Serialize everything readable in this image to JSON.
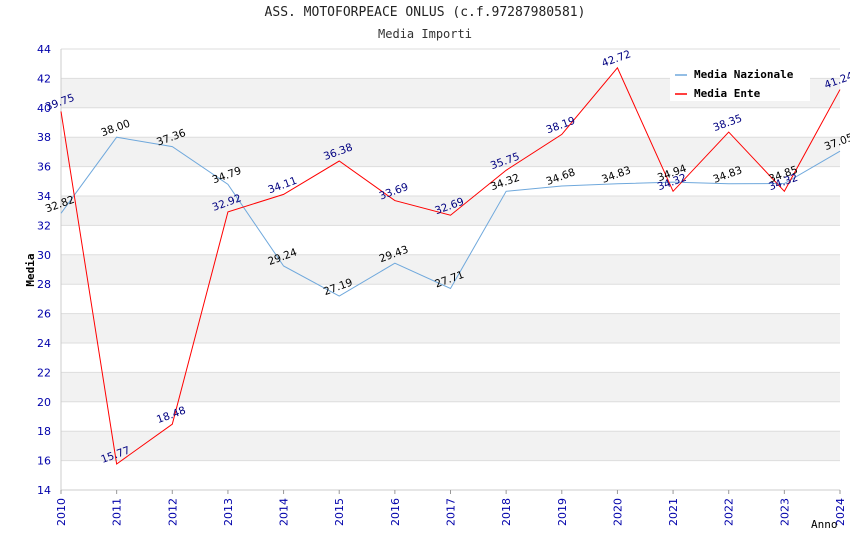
{
  "chart_data": {
    "type": "line",
    "title": "ASS. MOTOFORPEACE ONLUS (c.f.97287980581)",
    "subtitle": "Media Importi",
    "xlabel": "Anno",
    "ylabel": "Media",
    "ylim": [
      14,
      44
    ],
    "ytick_step": 2,
    "grid": true,
    "legend_position": "top-right",
    "x": [
      2010,
      2011,
      2012,
      2013,
      2014,
      2015,
      2016,
      2017,
      2018,
      2019,
      2020,
      2021,
      2022,
      2023,
      2024
    ],
    "series": [
      {
        "name": "Media Nazionale",
        "color": "#6fa8dc",
        "label_color": "#000000",
        "values": [
          32.82,
          38.0,
          37.36,
          34.79,
          29.24,
          27.19,
          29.43,
          27.71,
          34.32,
          34.68,
          34.83,
          34.94,
          34.83,
          34.85,
          37.05
        ],
        "labels": [
          "32.82",
          "38.00",
          "37.36",
          "34.79",
          "29.24",
          "27.19",
          "29.43",
          "27.71",
          "34.32",
          "34.68",
          "34.83",
          "34.94",
          "34.83",
          "34.85",
          "37.05"
        ]
      },
      {
        "name": "Media Ente",
        "color": "#ff0000",
        "label_color": "#000080",
        "values": [
          39.75,
          15.77,
          18.48,
          32.92,
          34.11,
          36.38,
          33.69,
          32.69,
          35.75,
          38.19,
          42.72,
          34.32,
          38.35,
          34.32,
          41.24
        ],
        "labels": [
          "39.75",
          "15.77",
          "18.48",
          "32.92",
          "34.11",
          "36.38",
          "33.69",
          "32.69",
          "35.75",
          "38.19",
          "42.72",
          "34.32",
          "38.35",
          "34.32",
          "41.24"
        ]
      }
    ]
  }
}
